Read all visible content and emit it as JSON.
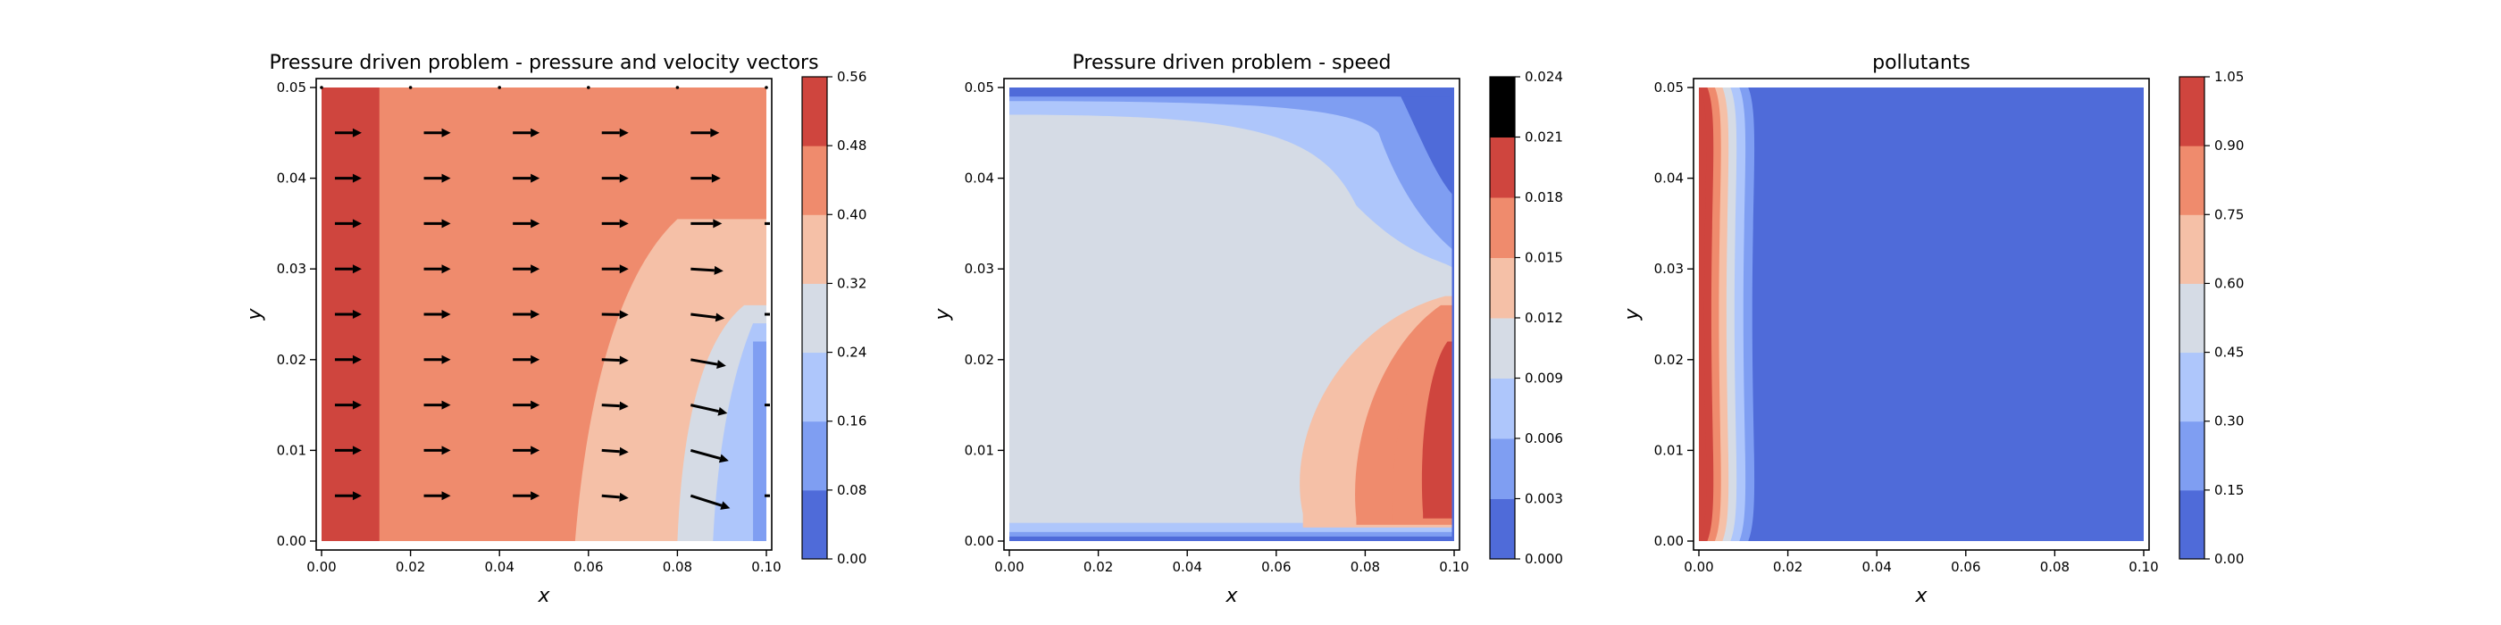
{
  "colormap": [
    "#4f6bd9",
    "#7f9ef2",
    "#aec6fb",
    "#d5dbe5",
    "#f5c0a7",
    "#ef8b6d",
    "#cf453e"
  ],
  "chart_data": [
    {
      "type": "heatmap",
      "title": "Pressure driven problem - pressure and velocity vectors",
      "xlabel": "x",
      "ylabel": "y",
      "xlim": [
        0,
        0.1
      ],
      "ylim": [
        0,
        0.05
      ],
      "xticks": [
        "0.00",
        "0.02",
        "0.04",
        "0.06",
        "0.08",
        "0.10"
      ],
      "yticks": [
        "0.00",
        "0.01",
        "0.02",
        "0.03",
        "0.04",
        "0.05"
      ],
      "colorbar_levels": [
        "0.00",
        "0.08",
        "0.16",
        "0.24",
        "0.32",
        "0.40",
        "0.48",
        "0.56"
      ],
      "regions": [
        {
          "range": [
            0.48,
            0.56
          ],
          "extent": "x 0.000–0.013, full height"
        },
        {
          "range": [
            0.4,
            0.48
          ],
          "extent": "x 0.013–0.057 bottom; to x 0.080 up to y≈0.035; to 0.1 top"
        },
        {
          "range": [
            0.32,
            0.4
          ],
          "extent": "quarter-ring x 0.057–0.080 at bottom, up to y≈0.035"
        },
        {
          "range": [
            0.24,
            0.32
          ],
          "extent": "x 0.080–0.088 near bottom-right"
        },
        {
          "range": [
            0.16,
            0.24
          ],
          "extent": "x 0.088–0.097 bottom-right corner"
        },
        {
          "range": [
            0.08,
            0.16
          ],
          "extent": "thin strip at x≈0.098"
        }
      ],
      "quiver": {
        "x": [
          0.003,
          0.023,
          0.043,
          0.063,
          0.083
        ],
        "y": [
          0.005,
          0.01,
          0.015,
          0.02,
          0.025,
          0.03,
          0.035,
          0.04,
          0.045
        ],
        "note": "arrows point in +x; last column tilts downward increasingly toward bottom"
      }
    },
    {
      "type": "heatmap",
      "title": "Pressure driven problem - speed",
      "xlabel": "x",
      "ylabel": "y",
      "xlim": [
        0,
        0.1
      ],
      "ylim": [
        0,
        0.05
      ],
      "xticks": [
        "0.00",
        "0.02",
        "0.04",
        "0.06",
        "0.08",
        "0.10"
      ],
      "yticks": [
        "0.00",
        "0.01",
        "0.02",
        "0.03",
        "0.04",
        "0.05"
      ],
      "colorbar_levels": [
        "0.000",
        "0.003",
        "0.006",
        "0.009",
        "0.012",
        "0.015",
        "0.018",
        "0.021",
        "0.024"
      ],
      "regions": [
        {
          "range": [
            0.009,
            0.012
          ],
          "extent": "bulk of domain"
        },
        {
          "range": [
            0.0,
            0.006
          ],
          "extent": "thin boundary layers at top and bottom walls; top-right corner"
        },
        {
          "range": [
            0.012,
            0.024
          ],
          "extent": "plume near right outlet, peak at x≈0.1, y≈0.005–0.02"
        }
      ]
    },
    {
      "type": "heatmap",
      "title": "pollutants",
      "xlabel": "x",
      "ylabel": "y",
      "xlim": [
        0,
        0.1
      ],
      "ylim": [
        0,
        0.05
      ],
      "xticks": [
        "0.00",
        "0.02",
        "0.04",
        "0.06",
        "0.08",
        "0.10"
      ],
      "yticks": [
        "0.00",
        "0.01",
        "0.02",
        "0.03",
        "0.04",
        "0.05"
      ],
      "colorbar_levels": [
        "0.00",
        "0.15",
        "0.30",
        "0.45",
        "0.60",
        "0.75",
        "0.90",
        "1.05"
      ],
      "regions": [
        {
          "range": [
            0.9,
            1.05
          ],
          "extent": "x 0.000–0.002"
        },
        {
          "range": [
            0.75,
            0.9
          ],
          "extent": "x 0.002–0.004"
        },
        {
          "range": [
            0.6,
            0.75
          ],
          "extent": "x 0.004–0.006"
        },
        {
          "range": [
            0.45,
            0.6
          ],
          "extent": "x 0.006–0.008"
        },
        {
          "range": [
            0.3,
            0.45
          ],
          "extent": "x 0.008–0.010"
        },
        {
          "range": [
            0.15,
            0.3
          ],
          "extent": "x 0.010–0.012"
        },
        {
          "range": [
            0.0,
            0.15
          ],
          "extent": "x 0.012–0.100"
        }
      ]
    }
  ]
}
